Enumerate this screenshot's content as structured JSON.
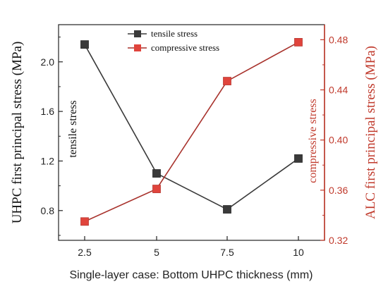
{
  "chart_data": {
    "type": "line",
    "categories": [
      "2.5",
      "5",
      "7.5",
      "10"
    ],
    "x": [
      2.5,
      5,
      7.5,
      10
    ],
    "xlabel": "Single-layer case: Bottom UHPC thickness (mm)",
    "ylabel_left": "UHPC first principal stress (MPa)",
    "ylabel_right": "ALC first principal stress (MPa)",
    "ylim_left": [
      0.56,
      2.3
    ],
    "ylim_right": [
      0.32,
      0.492
    ],
    "yticks_left": [
      0.8,
      1.2,
      1.6,
      2.0
    ],
    "yticks_left_labels": [
      "0.8",
      "1.2",
      "1.6",
      "2.0"
    ],
    "yticks_right": [
      0.32,
      0.36,
      0.4,
      0.44,
      0.48
    ],
    "yticks_right_labels": [
      "0.32",
      "0.36",
      "0.40",
      "0.44",
      "0.48"
    ],
    "series": [
      {
        "name": "tensile stress",
        "axis": "left",
        "color": "#3a3a3a",
        "marker": "square",
        "values": [
          2.14,
          1.1,
          0.81,
          1.22
        ]
      },
      {
        "name": "compressive stress",
        "axis": "right",
        "color": "#e0443c",
        "line_color": "#a8322c",
        "marker": "square",
        "values": [
          0.335,
          0.361,
          0.447,
          0.478
        ]
      }
    ],
    "annotations": {
      "left": "tensile stress",
      "right": "compressive stress"
    },
    "legend": "top-center",
    "grid": false,
    "right_axis_color": "#c0392b"
  }
}
